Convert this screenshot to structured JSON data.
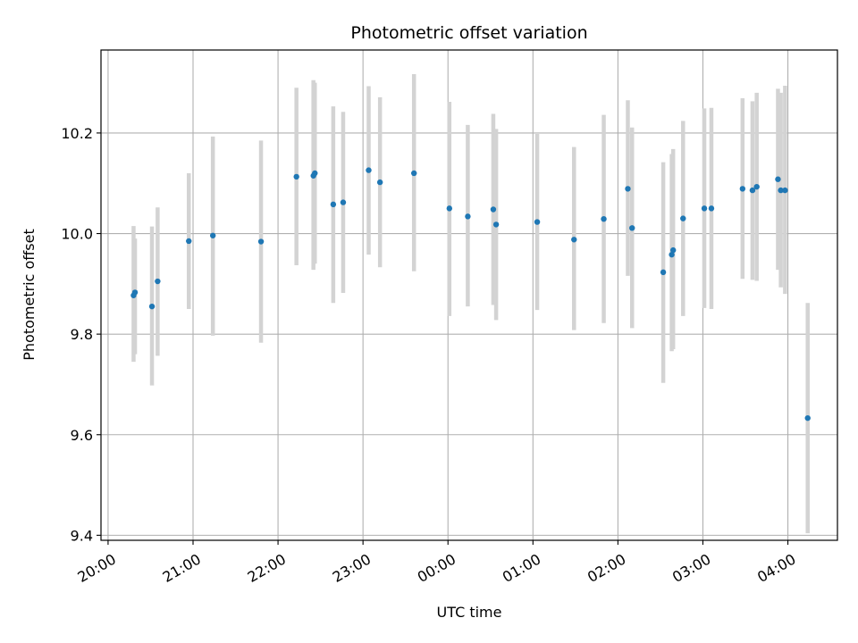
{
  "chart_data": {
    "type": "scatter",
    "title": "Photometric offset variation",
    "xlabel": "UTC time",
    "ylabel": "Photometric offset",
    "xlim": [
      "19:55",
      "04:35"
    ],
    "ylim": [
      9.39,
      10.365
    ],
    "grid": true,
    "x_ticks": [
      "20:00",
      "21:00",
      "22:00",
      "23:00",
      "00:00",
      "01:00",
      "02:00",
      "03:00",
      "04:00"
    ],
    "y_ticks": [
      "9.4",
      "9.6",
      "9.8",
      "10.0",
      "10.2"
    ],
    "colors": {
      "point": "#1f77b4",
      "errorbar": "#d3d3d3",
      "grid": "#b0b0b0"
    },
    "series": [
      {
        "points": [
          {
            "x": "20:18",
            "y": 9.877,
            "ylow": 9.745,
            "yhigh": 10.015
          },
          {
            "x": "20:19",
            "y": 9.883,
            "ylow": 9.76,
            "yhigh": 9.99
          },
          {
            "x": "20:31",
            "y": 9.855,
            "ylow": 9.698,
            "yhigh": 10.014
          },
          {
            "x": "20:35",
            "y": 9.905,
            "ylow": 9.757,
            "yhigh": 10.052
          },
          {
            "x": "20:57",
            "y": 9.985,
            "ylow": 9.85,
            "yhigh": 10.12
          },
          {
            "x": "21:14",
            "y": 9.996,
            "ylow": 9.797,
            "yhigh": 10.193
          },
          {
            "x": "21:48",
            "y": 9.984,
            "ylow": 9.783,
            "yhigh": 10.185
          },
          {
            "x": "22:13",
            "y": 10.113,
            "ylow": 9.937,
            "yhigh": 10.29
          },
          {
            "x": "22:25",
            "y": 10.115,
            "ylow": 9.928,
            "yhigh": 10.305
          },
          {
            "x": "22:26",
            "y": 10.12,
            "ylow": 9.94,
            "yhigh": 10.3
          },
          {
            "x": "22:39",
            "y": 10.058,
            "ylow": 9.862,
            "yhigh": 10.253
          },
          {
            "x": "22:46",
            "y": 10.062,
            "ylow": 9.882,
            "yhigh": 10.242
          },
          {
            "x": "23:04",
            "y": 10.126,
            "ylow": 9.958,
            "yhigh": 10.293
          },
          {
            "x": "23:12",
            "y": 10.102,
            "ylow": 9.933,
            "yhigh": 10.271
          },
          {
            "x": "23:36",
            "y": 10.12,
            "ylow": 9.925,
            "yhigh": 10.317
          },
          {
            "x": "00:01",
            "y": 10.05,
            "ylow": 9.836,
            "yhigh": 10.262
          },
          {
            "x": "00:14",
            "y": 10.034,
            "ylow": 9.855,
            "yhigh": 10.216
          },
          {
            "x": "00:32",
            "y": 10.048,
            "ylow": 9.858,
            "yhigh": 10.238
          },
          {
            "x": "00:34",
            "y": 10.018,
            "ylow": 9.828,
            "yhigh": 10.208
          },
          {
            "x": "01:03",
            "y": 10.023,
            "ylow": 9.848,
            "yhigh": 10.198
          },
          {
            "x": "01:29",
            "y": 9.988,
            "ylow": 9.808,
            "yhigh": 10.172
          },
          {
            "x": "01:50",
            "y": 10.029,
            "ylow": 9.822,
            "yhigh": 10.236
          },
          {
            "x": "02:07",
            "y": 10.089,
            "ylow": 9.916,
            "yhigh": 10.265
          },
          {
            "x": "02:10",
            "y": 10.011,
            "ylow": 9.812,
            "yhigh": 10.211
          },
          {
            "x": "02:32",
            "y": 9.923,
            "ylow": 9.703,
            "yhigh": 10.142
          },
          {
            "x": "02:38",
            "y": 9.958,
            "ylow": 9.766,
            "yhigh": 10.158
          },
          {
            "x": "02:39",
            "y": 9.967,
            "ylow": 9.77,
            "yhigh": 10.168
          },
          {
            "x": "02:46",
            "y": 10.03,
            "ylow": 9.836,
            "yhigh": 10.224
          },
          {
            "x": "03:01",
            "y": 10.05,
            "ylow": 9.852,
            "yhigh": 10.249
          },
          {
            "x": "03:06",
            "y": 10.05,
            "ylow": 9.85,
            "yhigh": 10.25
          },
          {
            "x": "03:28",
            "y": 10.089,
            "ylow": 9.91,
            "yhigh": 10.269
          },
          {
            "x": "03:35",
            "y": 10.086,
            "ylow": 9.908,
            "yhigh": 10.263
          },
          {
            "x": "03:38",
            "y": 10.093,
            "ylow": 9.906,
            "yhigh": 10.28
          },
          {
            "x": "03:53",
            "y": 10.108,
            "ylow": 9.928,
            "yhigh": 10.288
          },
          {
            "x": "03:55",
            "y": 10.086,
            "ylow": 9.893,
            "yhigh": 10.28
          },
          {
            "x": "03:58",
            "y": 10.086,
            "ylow": 9.88,
            "yhigh": 10.294
          },
          {
            "x": "04:14",
            "y": 9.633,
            "ylow": 9.404,
            "yhigh": 9.862
          }
        ]
      }
    ]
  }
}
